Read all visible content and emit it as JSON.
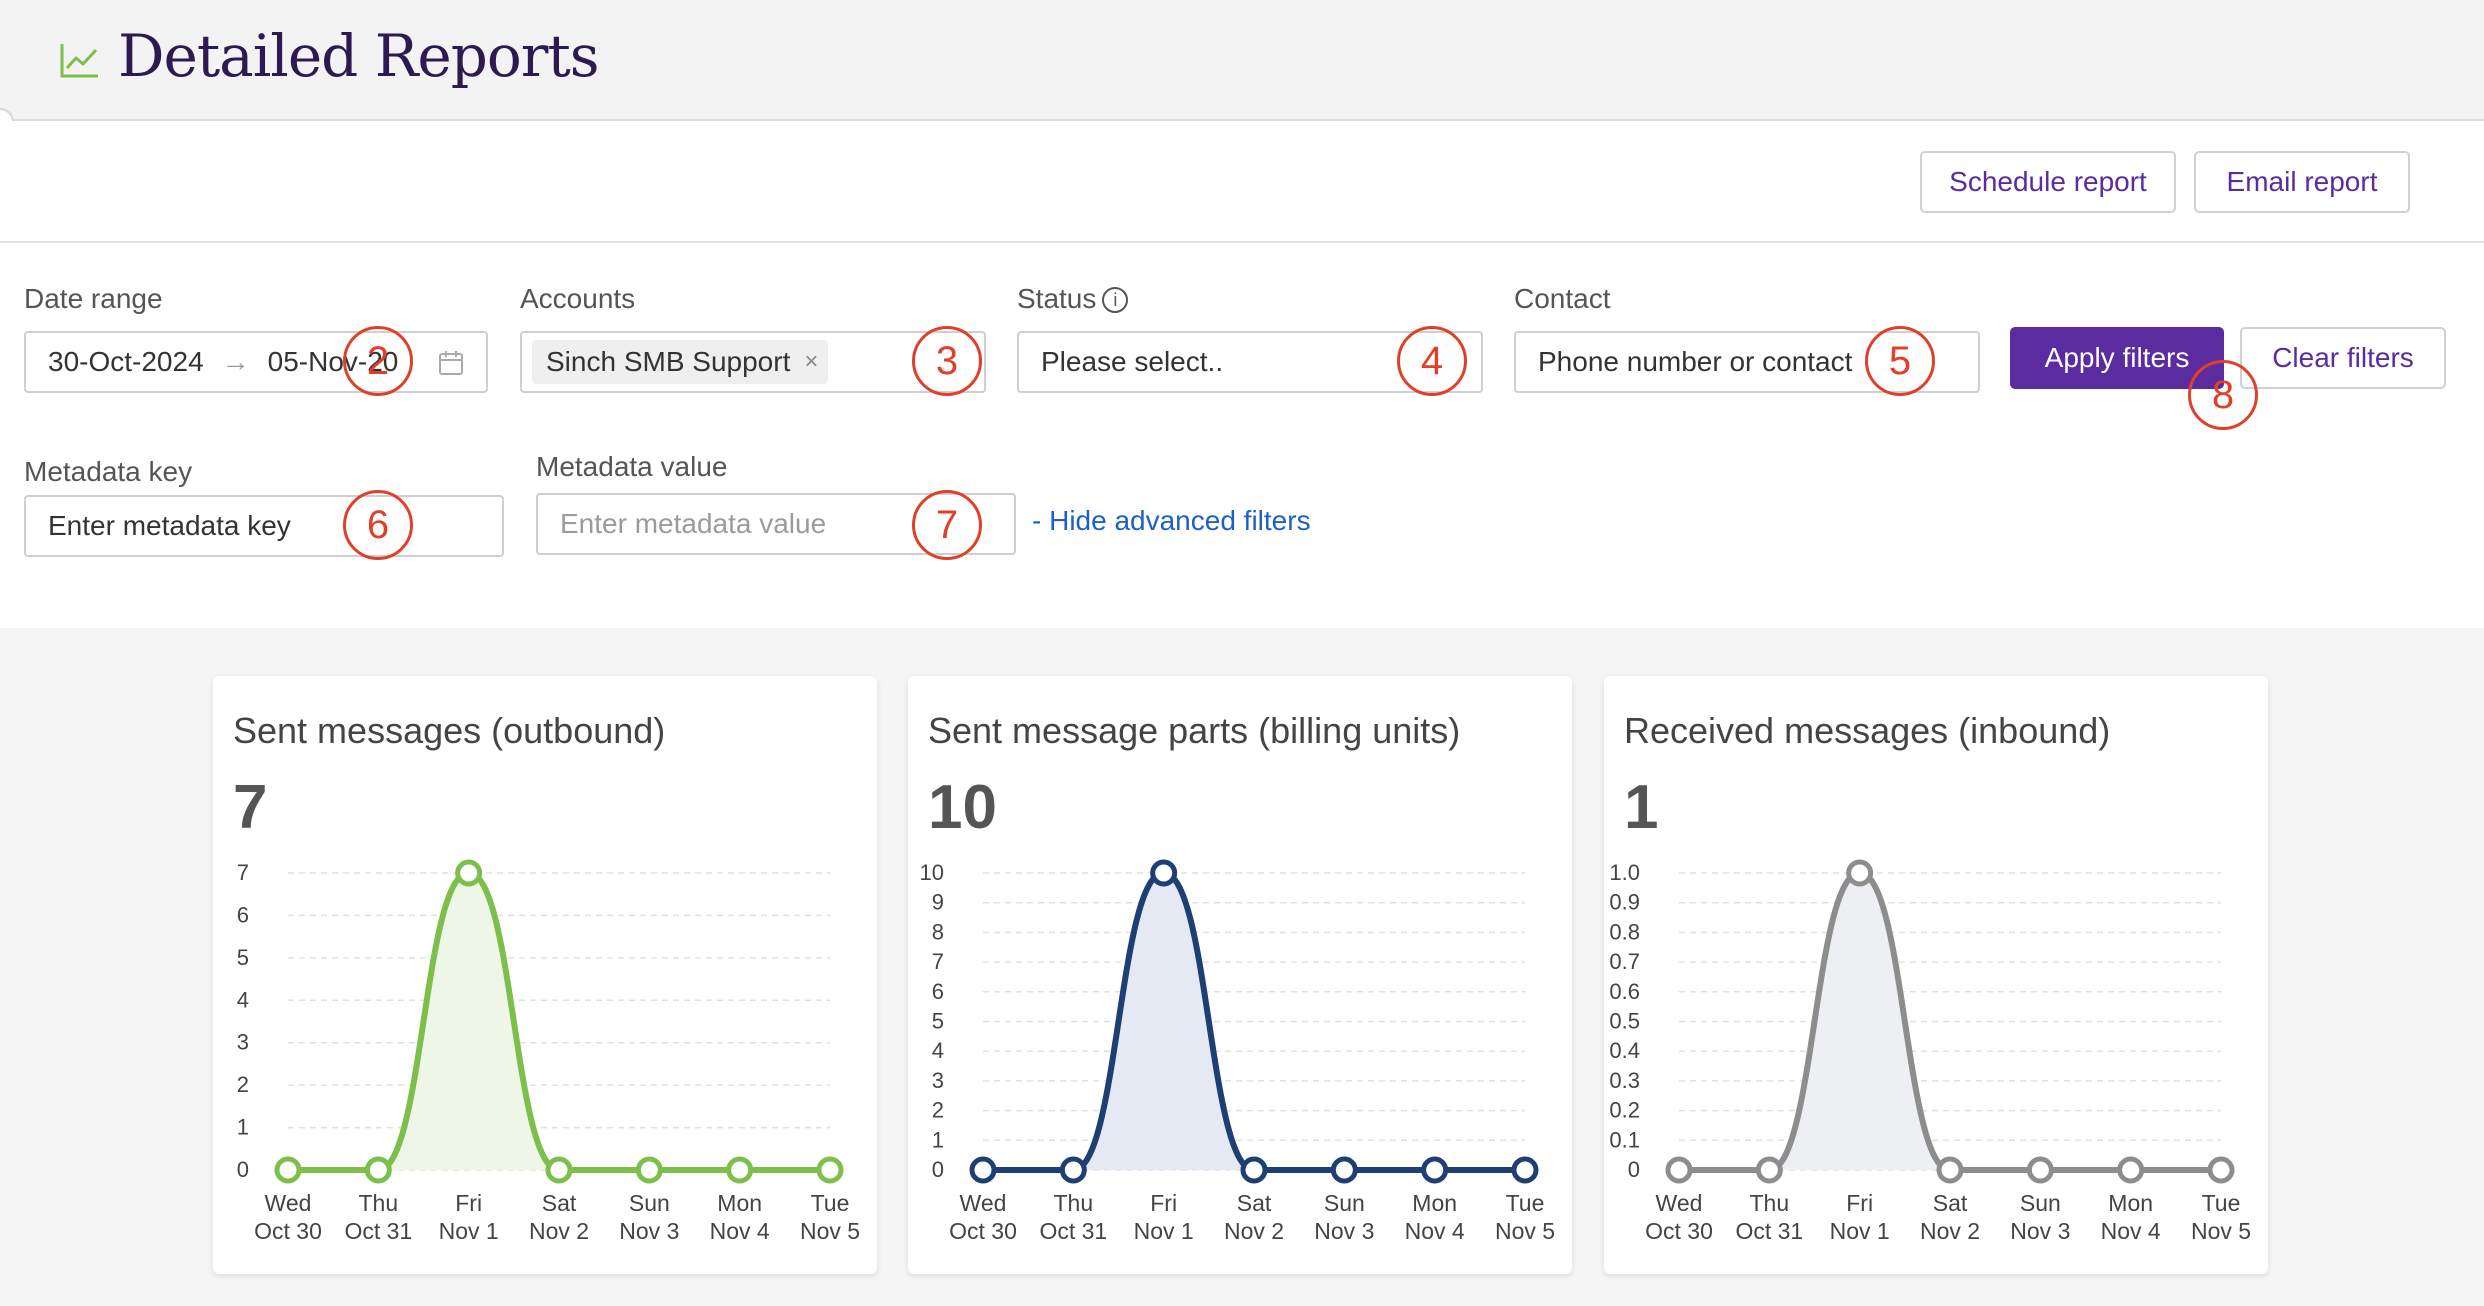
{
  "header": {
    "title": "Detailed Reports",
    "icon": "line-chart-icon",
    "accent": "#7cbf4a"
  },
  "actions": {
    "schedule": "Schedule report",
    "email": "Email report"
  },
  "filters": {
    "date_range": {
      "label": "Date range",
      "start": "30-Oct-2024",
      "arrow": "→",
      "end": "05-Nov-2024"
    },
    "accounts": {
      "label": "Accounts",
      "tag": "Sinch SMB Support",
      "remove": "×"
    },
    "status": {
      "label": "Status",
      "info": "i",
      "placeholder": "Please select.."
    },
    "contact": {
      "label": "Contact",
      "placeholder": "Phone number or contact"
    },
    "apply": "Apply filters",
    "clear": "Clear filters",
    "metadata_key": {
      "label": "Metadata key",
      "placeholder": "Enter metadata key"
    },
    "metadata_value": {
      "label": "Metadata value",
      "placeholder": "Enter metadata value"
    },
    "toggle_advanced": "- Hide advanced filters"
  },
  "annotations": [
    "2",
    "3",
    "4",
    "5",
    "6",
    "7",
    "8"
  ],
  "cards": [
    {
      "title": "Sent messages (outbound)",
      "total": "7"
    },
    {
      "title": "Sent message parts (billing units)",
      "total": "10"
    },
    {
      "title": "Received messages (inbound)",
      "total": "1"
    }
  ],
  "chart_data": [
    {
      "type": "area",
      "title": "Sent messages (outbound)",
      "categories": [
        "Wed Oct 30",
        "Thu Oct 31",
        "Fri Nov 1",
        "Sat Nov 2",
        "Sun Nov 3",
        "Mon Nov 4",
        "Tue Nov 5"
      ],
      "weekday_labels": [
        "Wed",
        "Thu",
        "Fri",
        "Sat",
        "Sun",
        "Mon",
        "Tue"
      ],
      "date_labels": [
        "Oct 30",
        "Oct 31",
        "Nov 1",
        "Nov 2",
        "Nov 3",
        "Nov 4",
        "Nov 5"
      ],
      "values": [
        0,
        0,
        7,
        0,
        0,
        0,
        0
      ],
      "ylim": [
        0,
        7
      ],
      "yticks": [
        "0",
        "1",
        "2",
        "3",
        "4",
        "5",
        "6",
        "7"
      ],
      "color": "#7cbf4a",
      "fill": "#eef6e8",
      "grid": true
    },
    {
      "type": "area",
      "title": "Sent message parts (billing units)",
      "categories": [
        "Wed Oct 30",
        "Thu Oct 31",
        "Fri Nov 1",
        "Sat Nov 2",
        "Sun Nov 3",
        "Mon Nov 4",
        "Tue Nov 5"
      ],
      "weekday_labels": [
        "Wed",
        "Thu",
        "Fri",
        "Sat",
        "Sun",
        "Mon",
        "Tue"
      ],
      "date_labels": [
        "Oct 30",
        "Oct 31",
        "Nov 1",
        "Nov 2",
        "Nov 3",
        "Nov 4",
        "Nov 5"
      ],
      "values": [
        0,
        0,
        10,
        0,
        0,
        0,
        0
      ],
      "ylim": [
        0,
        10
      ],
      "yticks": [
        "0",
        "1",
        "2",
        "3",
        "4",
        "5",
        "6",
        "7",
        "8",
        "9",
        "10"
      ],
      "color": "#1e3f73",
      "fill": "#e4e9f3",
      "grid": true
    },
    {
      "type": "area",
      "title": "Received messages (inbound)",
      "categories": [
        "Wed Oct 30",
        "Thu Oct 31",
        "Fri Nov 1",
        "Sat Nov 2",
        "Sun Nov 3",
        "Mon Nov 4",
        "Tue Nov 5"
      ],
      "weekday_labels": [
        "Wed",
        "Thu",
        "Fri",
        "Sat",
        "Sun",
        "Mon",
        "Tue"
      ],
      "date_labels": [
        "Oct 30",
        "Oct 31",
        "Nov 1",
        "Nov 2",
        "Nov 3",
        "Nov 4",
        "Nov 5"
      ],
      "values": [
        0,
        0,
        1,
        0,
        0,
        0,
        0
      ],
      "ylim": [
        0,
        1
      ],
      "yticks": [
        "0",
        "0.1",
        "0.2",
        "0.3",
        "0.4",
        "0.5",
        "0.6",
        "0.7",
        "0.8",
        "0.9",
        "1.0"
      ],
      "color": "#8d8d8d",
      "fill": "#eeeff2",
      "grid": true
    }
  ]
}
